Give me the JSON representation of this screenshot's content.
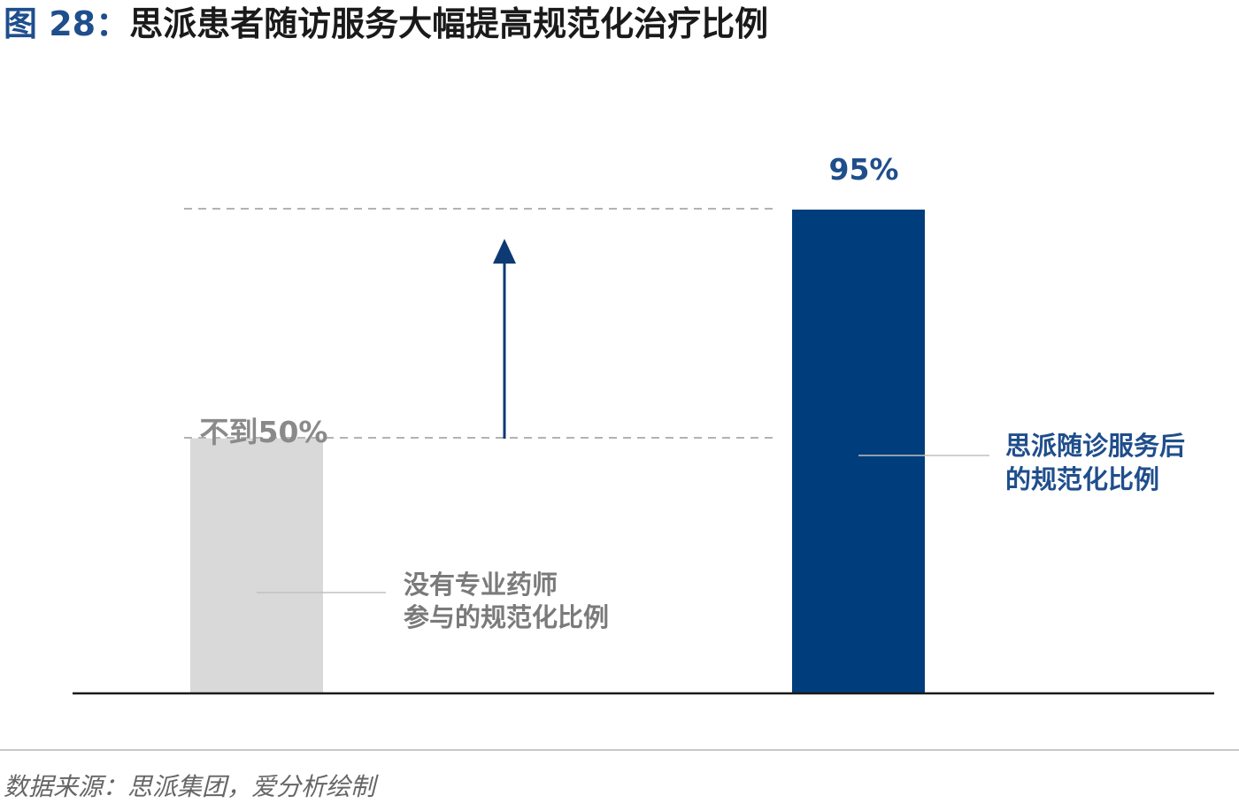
{
  "title": {
    "figure_number": "图 28：",
    "text": "思派患者随访服务大幅提高规范化治疗比例"
  },
  "chart_data": {
    "type": "bar",
    "categories": [
      "没有专业药师参与的规范化比例",
      "思派随诊服务后的规范化比例"
    ],
    "values": [
      50,
      95
    ],
    "ylim": [
      0,
      100
    ],
    "grid": false,
    "data_labels": [
      "不到50%",
      "95%"
    ],
    "annotations": [
      {
        "lines": [
          "没有专业药师",
          "参与的规范化比例"
        ]
      },
      {
        "lines": [
          "思派随诊服务后",
          "的规范化比例"
        ]
      }
    ],
    "colors": [
      "#d9d9d9",
      "#003d7c"
    ],
    "label_colors": [
      "#8a8a8a",
      "#1f4e8c"
    ],
    "arrow_color": "#0d3a73"
  },
  "source": "数据来源：思派集团，爱分析绘制"
}
